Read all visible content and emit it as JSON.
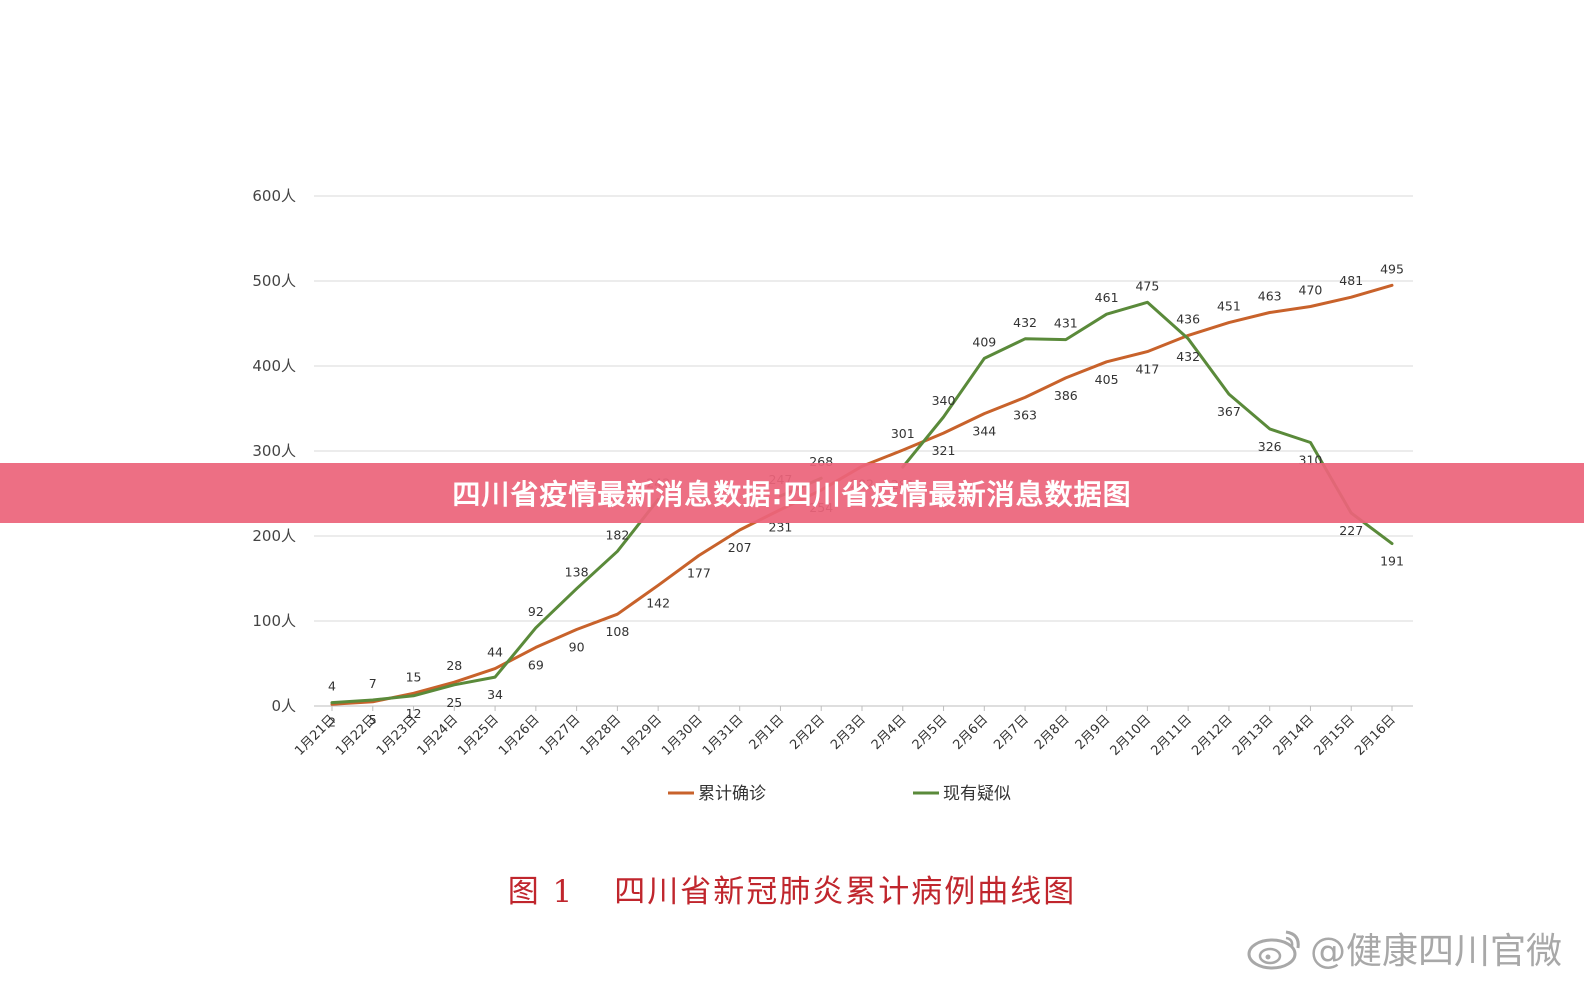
{
  "banner": {
    "text": "四川省疫情最新消息数据:四川省疫情最新消息数据图"
  },
  "caption": {
    "figure_number": "图 1",
    "title": "四川省新冠肺炎累计病例曲线图"
  },
  "watermark": {
    "text": "@健康四川官微",
    "logo": "weibo-logo-icon"
  },
  "chart_data": {
    "type": "line",
    "title": "",
    "xlabel": "",
    "ylabel": "",
    "ylim": [
      0,
      600
    ],
    "yticks": [
      {
        "value": 0,
        "label": "0人"
      },
      {
        "value": 100,
        "label": "100人"
      },
      {
        "value": 200,
        "label": "200人"
      },
      {
        "value": 300,
        "label": "300人"
      },
      {
        "value": 400,
        "label": "400人"
      },
      {
        "value": 500,
        "label": "500人"
      },
      {
        "value": 600,
        "label": "600人"
      }
    ],
    "grid": true,
    "legend_position": "bottom",
    "categories": [
      "1月21日",
      "1月22日",
      "1月23日",
      "1月24日",
      "1月25日",
      "1月26日",
      "1月27日",
      "1月28日",
      "1月29日",
      "1月30日",
      "1月31日",
      "2月1日",
      "2月2日",
      "2月3日",
      "2月4日",
      "2月5日",
      "2月6日",
      "2月7日",
      "2月8日",
      "2月9日",
      "2月10日",
      "2月11日",
      "2月12日",
      "2月13日",
      "2月14日",
      "2月15日",
      "2月16日"
    ],
    "series": [
      {
        "name": "累计确诊",
        "color": "#c8622b",
        "values": [
          2,
          5,
          15,
          28,
          44,
          69,
          90,
          108,
          142,
          177,
          207,
          231,
          254,
          282,
          301,
          321,
          344,
          363,
          386,
          405,
          417,
          436,
          451,
          463,
          470,
          481,
          495
        ]
      },
      {
        "name": "现有疑似",
        "color": "#5a8a3a",
        "values": [
          4,
          7,
          12,
          25,
          34,
          92,
          138,
          182,
          243,
          null,
          null,
          247,
          268,
          null,
          281,
          340,
          409,
          432,
          431,
          461,
          475,
          432,
          367,
          326,
          310,
          227,
          191
        ]
      }
    ]
  }
}
